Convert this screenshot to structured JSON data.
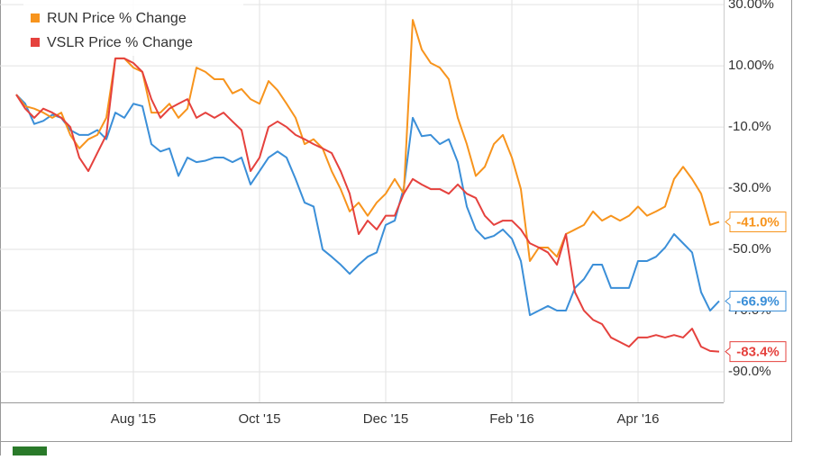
{
  "chart_data": {
    "type": "line",
    "categories": [
      null,
      null,
      null,
      null,
      null,
      null,
      null,
      null,
      null,
      null,
      null,
      null,
      null,
      "Aug '15",
      null,
      null,
      null,
      null,
      null,
      null,
      null,
      null,
      null,
      null,
      null,
      null,
      null,
      "Oct '15",
      null,
      null,
      null,
      null,
      null,
      null,
      null,
      null,
      null,
      null,
      null,
      null,
      null,
      "Dec '15",
      null,
      null,
      null,
      null,
      null,
      null,
      null,
      null,
      null,
      null,
      null,
      null,
      null,
      "Feb '16",
      null,
      null,
      null,
      null,
      null,
      null,
      null,
      null,
      null,
      null,
      null,
      null,
      null,
      "Apr '16",
      null,
      null,
      null,
      null,
      null,
      null,
      null,
      null,
      null
    ],
    "series": [
      {
        "color": "#3b8fd8",
        "end_label": "-66.9%",
        "values": [
          0.6,
          -2.4,
          -9,
          -8,
          -6,
          -7,
          -11,
          -12.6,
          -12.6,
          -11,
          -14,
          -5.3,
          -7,
          -2.4,
          -3.2,
          -15.6,
          -18,
          -17,
          -26,
          -20,
          -21.5,
          -21,
          -20,
          -20,
          -21.5,
          -20,
          -28.8,
          -24.4,
          -20,
          -18,
          -20,
          -27,
          -34.7,
          -36,
          -50,
          -52.4,
          -55,
          -58,
          -55,
          -52.4,
          -51,
          -42,
          -40.6,
          -30,
          -7,
          -13,
          -12.6,
          -15.6,
          -14,
          -21.5,
          -36,
          -43.5,
          -46.5,
          -45.6,
          -43.5,
          -46.5,
          -53.8,
          -71.5,
          -70,
          -68.5,
          -70,
          -70,
          -62.6,
          -59.7,
          -55,
          -55,
          -62.6,
          -62.6,
          -62.6,
          -53.8,
          -53.8,
          -52.4,
          -49.4,
          -45,
          -48,
          -51,
          -64,
          -70,
          -66.9
        ]
      },
      {
        "name": "RUN Price % Change",
        "color": "#f7941d",
        "end_label": "-41.0%",
        "values": [
          0.6,
          -3.2,
          -4,
          -5.3,
          -7,
          -5.3,
          -12.6,
          -17,
          -14,
          -12.6,
          -7,
          12.4,
          12.4,
          9.4,
          8,
          -5.3,
          -5.3,
          -2.4,
          -7,
          -4,
          9.4,
          8,
          5.6,
          5.6,
          1,
          2.4,
          -0.9,
          -2.4,
          5,
          2,
          -2.4,
          -7,
          -15.6,
          -14,
          -17,
          -24.4,
          -30.3,
          -37.6,
          -34.7,
          -39,
          -34.7,
          -31.8,
          -27,
          -31.8,
          25,
          15.3,
          10.9,
          9.4,
          5.6,
          -7,
          -15.6,
          -26,
          -23,
          -15.6,
          -12.6,
          -20,
          -30.3,
          -53.8,
          -49.4,
          -49.4,
          -52.4,
          -45,
          -43.5,
          -42,
          -37.6,
          -40.6,
          -39,
          -40.6,
          -39,
          -36,
          -39,
          -37.6,
          -36,
          -27,
          -23,
          -27,
          -31.8,
          -42,
          -41
        ]
      },
      {
        "name": "VSLR Price % Change",
        "color": "#e5413d",
        "end_label": "-83.4%",
        "values": [
          0.6,
          -4,
          -7,
          -4,
          -5.3,
          -7,
          -10,
          -20,
          -24.4,
          -18.5,
          -12.6,
          12.4,
          12.4,
          10.9,
          8,
          -0.9,
          -7,
          -4,
          -2.4,
          -0.9,
          -7,
          -5.3,
          -7,
          -5.3,
          -8.2,
          -11,
          -24.4,
          -20,
          -10,
          -8.2,
          -10,
          -12.6,
          -14,
          -15.6,
          -17,
          -18.5,
          -24.4,
          -31.8,
          -45,
          -40.6,
          -43.5,
          -39,
          -39,
          -31.8,
          -27,
          -28.8,
          -30.3,
          -30.3,
          -31.8,
          -28.8,
          -31.8,
          -33.2,
          -39,
          -42,
          -40.6,
          -40.6,
          -43.5,
          -48,
          -49.4,
          -51,
          -55,
          -45,
          -64,
          -70,
          -73,
          -74.4,
          -78.8,
          -80.3,
          -81.8,
          -78.8,
          -78.8,
          -78,
          -78.8,
          -78,
          -78.8,
          -75.9,
          -81.8,
          -83.2,
          -83.4
        ]
      }
    ],
    "ylim": [
      -100,
      31.5
    ],
    "yticks": [
      {
        "value": 30,
        "label": "30.00%"
      },
      {
        "value": 10,
        "label": "10.00%"
      },
      {
        "value": -10,
        "label": "-10.0%"
      },
      {
        "value": -30,
        "label": "-30.0%"
      },
      {
        "value": -50,
        "label": "-50.0%"
      },
      {
        "value": -70,
        "label": "-70.0%"
      },
      {
        "value": -90,
        "label": "-90.0%"
      }
    ],
    "grid": true
  }
}
